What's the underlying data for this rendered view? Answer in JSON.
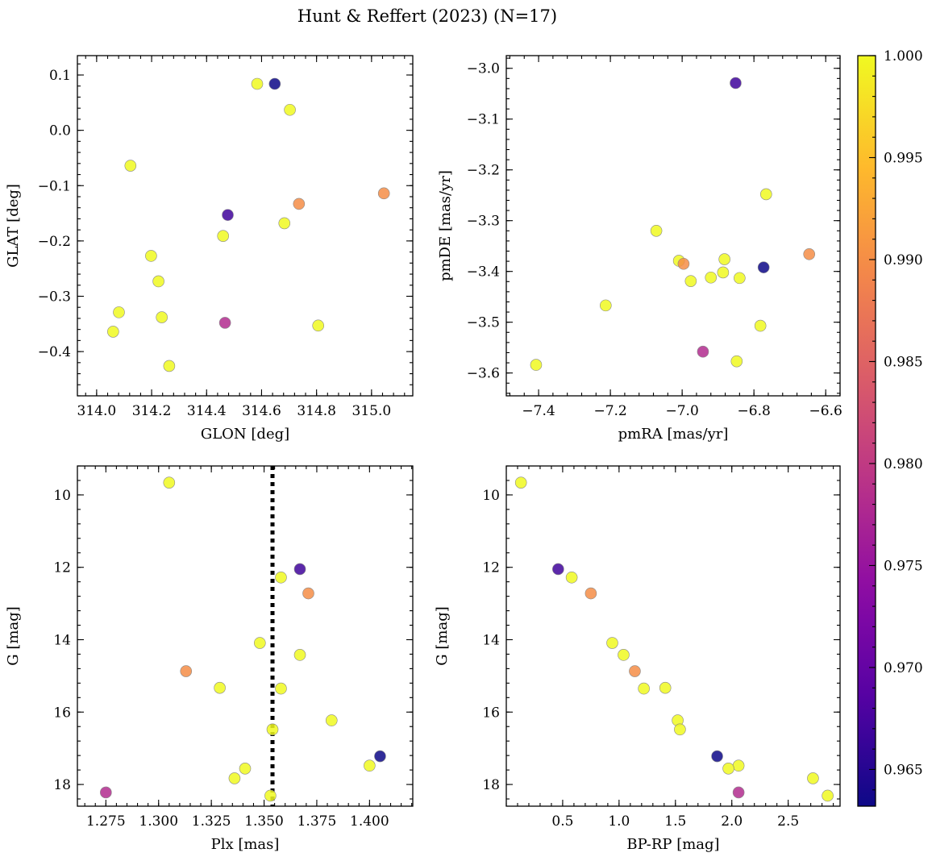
{
  "chart_data": {
    "title": "Hunt & Reffert (2023) (N=17)",
    "colorbar": {
      "min": 0.9632,
      "max": 1.0,
      "ticks": [
        "0.965",
        "0.970",
        "0.975",
        "0.980",
        "0.985",
        "0.990",
        "0.995",
        "1.000"
      ],
      "tick_values": [
        0.965,
        0.97,
        0.975,
        0.98,
        0.985,
        0.99,
        0.995,
        1.0
      ],
      "colormap": "plasma"
    },
    "panels": [
      {
        "type": "scatter",
        "xlabel": "GLON [deg]",
        "ylabel": "GLAT [deg]",
        "xlim": [
          313.93,
          315.15
        ],
        "ylim": [
          -0.48,
          0.135
        ],
        "xticks": [
          "314.0",
          "314.2",
          "314.4",
          "314.6",
          "314.8",
          "315.0"
        ],
        "xtick_values": [
          314.0,
          314.2,
          314.4,
          314.6,
          314.8,
          315.0
        ],
        "yticks": [
          "0.1",
          "0.0",
          "−0.1",
          "−0.2",
          "−0.3",
          "−0.4"
        ],
        "ytick_values": [
          0.1,
          0.0,
          -0.1,
          -0.2,
          -0.3,
          -0.4
        ],
        "points": [
          {
            "x": 314.584,
            "y": 0.084,
            "c": 1.0
          },
          {
            "x": 314.648,
            "y": 0.084,
            "c": 0.963
          },
          {
            "x": 314.703,
            "y": 0.037,
            "c": 1.0
          },
          {
            "x": 314.123,
            "y": -0.064,
            "c": 1.0
          },
          {
            "x": 315.045,
            "y": -0.114,
            "c": 0.99
          },
          {
            "x": 314.736,
            "y": -0.133,
            "c": 0.99
          },
          {
            "x": 314.477,
            "y": -0.153,
            "c": 0.967
          },
          {
            "x": 314.683,
            "y": -0.168,
            "c": 1.0
          },
          {
            "x": 314.46,
            "y": -0.191,
            "c": 1.0
          },
          {
            "x": 314.198,
            "y": -0.227,
            "c": 1.0
          },
          {
            "x": 314.225,
            "y": -0.273,
            "c": 1.0
          },
          {
            "x": 314.081,
            "y": -0.329,
            "c": 1.0
          },
          {
            "x": 314.237,
            "y": -0.338,
            "c": 1.0
          },
          {
            "x": 314.467,
            "y": -0.348,
            "c": 0.978
          },
          {
            "x": 314.806,
            "y": -0.353,
            "c": 1.0
          },
          {
            "x": 314.06,
            "y": -0.364,
            "c": 1.0
          },
          {
            "x": 314.264,
            "y": -0.426,
            "c": 1.0
          }
        ]
      },
      {
        "type": "scatter",
        "xlabel": "pmRA [mas/yr]",
        "ylabel": "pmDE [mas/yr]",
        "xlim": [
          -7.49,
          -6.56
        ],
        "ylim": [
          -3.645,
          -2.975
        ],
        "xticks": [
          "−7.4",
          "−7.2",
          "−7.0",
          "−6.8",
          "−6.6"
        ],
        "xtick_values": [
          -7.4,
          -7.2,
          -7.0,
          -6.8,
          -6.6
        ],
        "yticks": [
          "−3.0",
          "−3.1",
          "−3.2",
          "−3.3",
          "−3.4",
          "−3.5",
          "−3.6"
        ],
        "ytick_values": [
          -3.0,
          -3.1,
          -3.2,
          -3.3,
          -3.4,
          -3.5,
          -3.6
        ],
        "points": [
          {
            "x": -6.851,
            "y": -3.029,
            "c": 0.967
          },
          {
            "x": -6.766,
            "y": -3.248,
            "c": 1.0
          },
          {
            "x": -7.072,
            "y": -3.32,
            "c": 1.0
          },
          {
            "x": -6.646,
            "y": -3.366,
            "c": 0.99
          },
          {
            "x": -6.882,
            "y": -3.376,
            "c": 1.0
          },
          {
            "x": -7.009,
            "y": -3.379,
            "c": 1.0
          },
          {
            "x": -6.996,
            "y": -3.385,
            "c": 0.99
          },
          {
            "x": -6.773,
            "y": -3.392,
            "c": 0.963
          },
          {
            "x": -6.886,
            "y": -3.402,
            "c": 1.0
          },
          {
            "x": -6.92,
            "y": -3.412,
            "c": 1.0
          },
          {
            "x": -6.84,
            "y": -3.413,
            "c": 1.0
          },
          {
            "x": -6.976,
            "y": -3.419,
            "c": 1.0
          },
          {
            "x": -7.213,
            "y": -3.467,
            "c": 1.0
          },
          {
            "x": -6.782,
            "y": -3.507,
            "c": 1.0
          },
          {
            "x": -6.942,
            "y": -3.558,
            "c": 0.978
          },
          {
            "x": -6.848,
            "y": -3.577,
            "c": 1.0
          },
          {
            "x": -7.407,
            "y": -3.584,
            "c": 1.0
          }
        ]
      },
      {
        "type": "scatter",
        "xlabel": "Plx [mas]",
        "ylabel": "G [mag]",
        "xlim": [
          1.2615,
          1.4205
        ],
        "ylim": [
          18.6,
          9.2
        ],
        "xticks": [
          "1.275",
          "1.300",
          "1.325",
          "1.350",
          "1.375",
          "1.400"
        ],
        "xtick_values": [
          1.275,
          1.3,
          1.325,
          1.35,
          1.375,
          1.4
        ],
        "yticks": [
          "10",
          "12",
          "14",
          "16",
          "18"
        ],
        "ytick_values": [
          10,
          12,
          14,
          16,
          18
        ],
        "vline": {
          "x": 1.354,
          "style": "dotted"
        },
        "points": [
          {
            "x": 1.305,
            "y": 9.66,
            "c": 1.0
          },
          {
            "x": 1.367,
            "y": 12.05,
            "c": 0.967
          },
          {
            "x": 1.358,
            "y": 12.28,
            "c": 1.0
          },
          {
            "x": 1.371,
            "y": 12.72,
            "c": 0.99
          },
          {
            "x": 1.348,
            "y": 14.09,
            "c": 1.0
          },
          {
            "x": 1.367,
            "y": 14.42,
            "c": 1.0
          },
          {
            "x": 1.313,
            "y": 14.87,
            "c": 0.99
          },
          {
            "x": 1.329,
            "y": 15.33,
            "c": 1.0
          },
          {
            "x": 1.358,
            "y": 15.35,
            "c": 1.0
          },
          {
            "x": 1.382,
            "y": 16.23,
            "c": 1.0
          },
          {
            "x": 1.354,
            "y": 16.48,
            "c": 1.0
          },
          {
            "x": 1.405,
            "y": 17.22,
            "c": 0.963
          },
          {
            "x": 1.4,
            "y": 17.48,
            "c": 1.0
          },
          {
            "x": 1.341,
            "y": 17.56,
            "c": 1.0
          },
          {
            "x": 1.336,
            "y": 17.83,
            "c": 1.0
          },
          {
            "x": 1.275,
            "y": 18.22,
            "c": 0.978
          },
          {
            "x": 1.353,
            "y": 18.31,
            "c": 1.0
          }
        ]
      },
      {
        "type": "scatter",
        "xlabel": "BP-RP [mag]",
        "ylabel": "G [mag]",
        "xlim": [
          0.0,
          2.96
        ],
        "ylim": [
          18.6,
          9.2
        ],
        "xticks": [
          "0.5",
          "1.0",
          "1.5",
          "2.0",
          "2.5"
        ],
        "xtick_values": [
          0.5,
          1.0,
          1.5,
          2.0,
          2.5
        ],
        "yticks": [
          "10",
          "12",
          "14",
          "16",
          "18"
        ],
        "ytick_values": [
          10,
          12,
          14,
          16,
          18
        ],
        "points": [
          {
            "x": 0.13,
            "y": 9.66,
            "c": 1.0
          },
          {
            "x": 0.46,
            "y": 12.05,
            "c": 0.967
          },
          {
            "x": 0.58,
            "y": 12.28,
            "c": 1.0
          },
          {
            "x": 0.75,
            "y": 12.72,
            "c": 0.99
          },
          {
            "x": 0.94,
            "y": 14.09,
            "c": 1.0
          },
          {
            "x": 1.04,
            "y": 14.42,
            "c": 1.0
          },
          {
            "x": 1.14,
            "y": 14.87,
            "c": 0.99
          },
          {
            "x": 1.22,
            "y": 15.35,
            "c": 1.0
          },
          {
            "x": 1.41,
            "y": 15.33,
            "c": 1.0
          },
          {
            "x": 1.52,
            "y": 16.23,
            "c": 1.0
          },
          {
            "x": 1.54,
            "y": 16.48,
            "c": 1.0
          },
          {
            "x": 1.87,
            "y": 17.22,
            "c": 0.963
          },
          {
            "x": 2.06,
            "y": 17.48,
            "c": 1.0
          },
          {
            "x": 1.97,
            "y": 17.56,
            "c": 1.0
          },
          {
            "x": 2.72,
            "y": 17.83,
            "c": 1.0
          },
          {
            "x": 2.06,
            "y": 18.22,
            "c": 0.978
          },
          {
            "x": 2.85,
            "y": 18.31,
            "c": 1.0
          }
        ]
      }
    ]
  }
}
